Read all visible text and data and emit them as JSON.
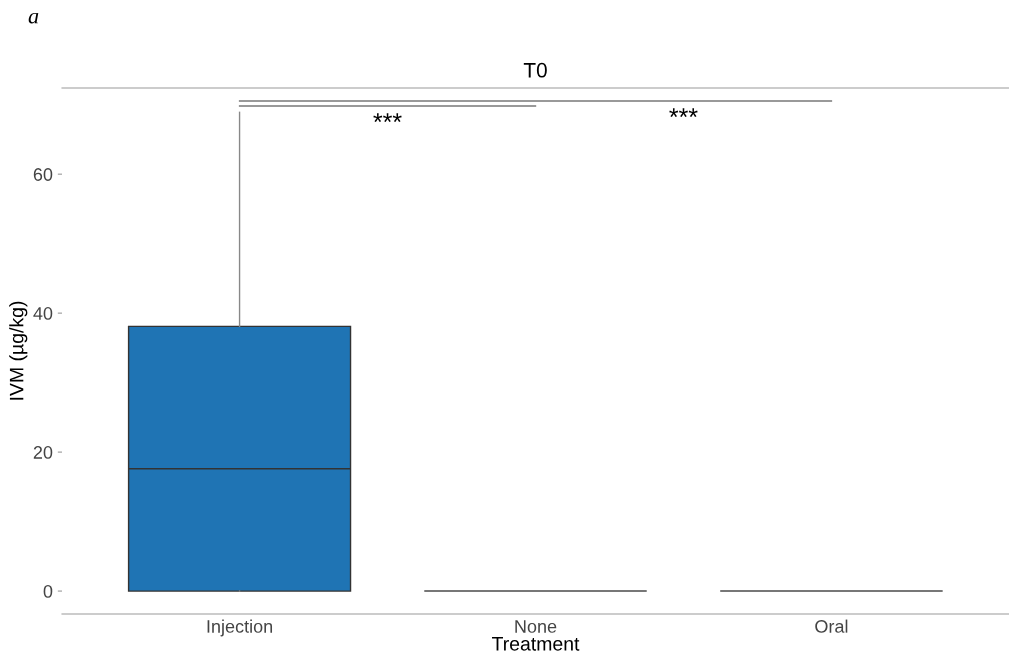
{
  "chart_data": {
    "type": "box",
    "title": "T0",
    "xlabel": "Treatment",
    "ylabel": "IVM (µg/kg)",
    "categories": [
      "Injection",
      "None",
      "Oral"
    ],
    "boxes": [
      {
        "low": 0,
        "q1": 0,
        "median": 17.6,
        "q3": 38.1,
        "high": 68.9
      },
      {
        "low": 0,
        "q1": 0,
        "median": 0,
        "q3": 0,
        "high": 0
      },
      {
        "low": 0,
        "q1": 0,
        "median": 0,
        "q3": 0,
        "high": 0
      }
    ],
    "colors": [
      "#1f74b4",
      "#777777",
      "#777777"
    ],
    "ylim": [
      -3.3,
      72.4
    ],
    "yticks": [
      0,
      20,
      40,
      60
    ],
    "annotations": [
      "a",
      "***",
      "***"
    ]
  }
}
